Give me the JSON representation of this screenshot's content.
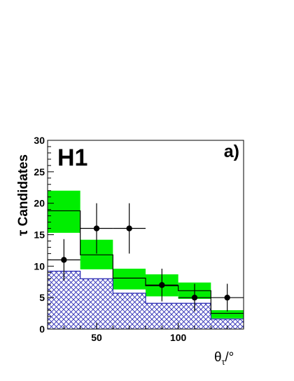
{
  "chart_data": {
    "type": "bar",
    "experiment_label": "H1",
    "panel_label": "a)",
    "ylabel": "τ Candidates",
    "xlabel": "θτ/°",
    "xlabel_main": "θ",
    "xlabel_sub": "τ",
    "xlabel_unit": "/°",
    "xlim": [
      20,
      140
    ],
    "ylim": [
      0,
      30
    ],
    "x_ticks": [
      50,
      100
    ],
    "y_ticks": [
      0,
      5,
      10,
      15,
      20,
      25,
      30
    ],
    "grid": false,
    "bin_edges": [
      20,
      40,
      60,
      80,
      100,
      120,
      140
    ],
    "series": [
      {
        "kind": "prediction-band",
        "color": "#00ee00",
        "low": [
          15.3,
          9.5,
          6.3,
          5.2,
          4.8,
          1.7
        ],
        "high": [
          22.0,
          14.2,
          9.6,
          8.7,
          7.4,
          3.0
        ]
      },
      {
        "kind": "prediction-line",
        "color": "#000000",
        "values": [
          18.8,
          11.8,
          8.1,
          6.9,
          6.1,
          2.5
        ]
      },
      {
        "kind": "background-hatched",
        "color": "#2a2ab4",
        "values": [
          9.2,
          8.0,
          5.7,
          4.1,
          4.1,
          1.6
        ]
      },
      {
        "kind": "data-points",
        "color": "#000000",
        "x": [
          30,
          50,
          70,
          90,
          110,
          130
        ],
        "x_err": [
          10,
          10,
          10,
          10,
          10,
          10
        ],
        "y": [
          11,
          16,
          16,
          7,
          5,
          5
        ],
        "y_err_low": [
          3.3,
          4.0,
          4.0,
          2.6,
          2.2,
          2.2
        ],
        "y_err_high": [
          3.3,
          4.0,
          4.0,
          2.6,
          2.2,
          2.2
        ]
      }
    ]
  }
}
